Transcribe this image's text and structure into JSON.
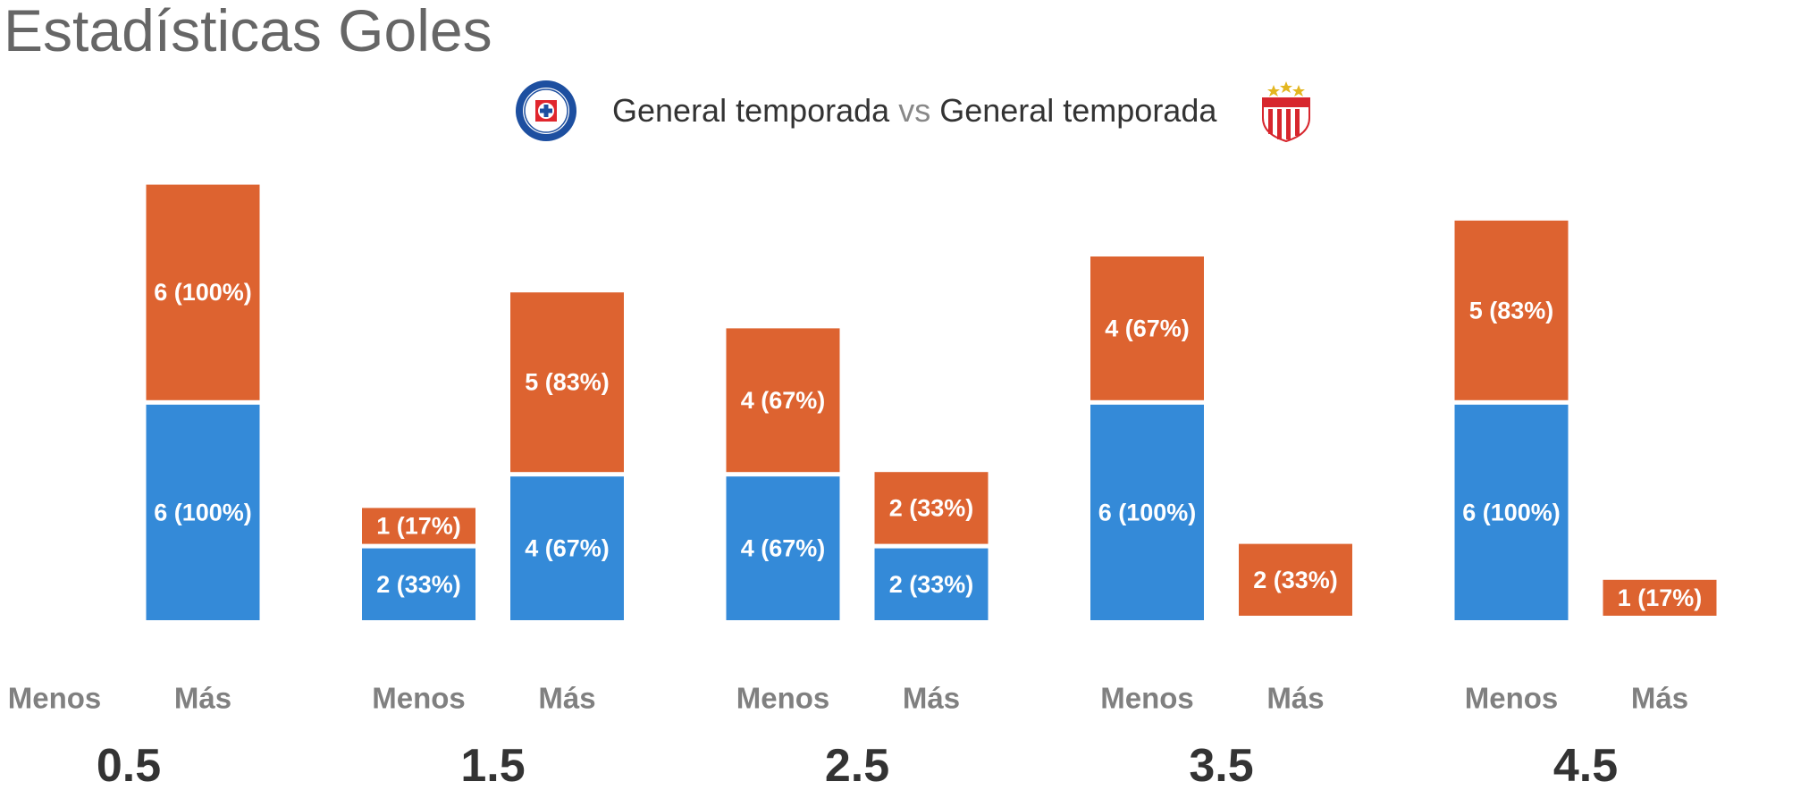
{
  "title": "Estadísticas Goles",
  "subtitle": {
    "left_label": "General temporada",
    "vs_label": "vs",
    "right_label": "General temporada",
    "left_logo": "cruz-azul-crest",
    "right_logo": "necaxa-crest"
  },
  "colors": {
    "blue": "#348ad8",
    "orange": "#dd6330",
    "label": "#808080",
    "group": "#333333"
  },
  "chart_data": {
    "type": "bar",
    "stacked": true,
    "groups": [
      {
        "line": "0.5",
        "bars": [
          {
            "label": "Menos",
            "blue": null,
            "orange": null
          },
          {
            "label": "Más",
            "blue": {
              "value": 6,
              "text": "6 (100%)"
            },
            "orange": {
              "value": 6,
              "text": "6 (100%)"
            }
          }
        ]
      },
      {
        "line": "1.5",
        "bars": [
          {
            "label": "Menos",
            "blue": {
              "value": 2,
              "text": "2 (33%)"
            },
            "orange": {
              "value": 1,
              "text": "1 (17%)"
            }
          },
          {
            "label": "Más",
            "blue": {
              "value": 4,
              "text": "4 (67%)"
            },
            "orange": {
              "value": 5,
              "text": "5 (83%)"
            }
          }
        ]
      },
      {
        "line": "2.5",
        "bars": [
          {
            "label": "Menos",
            "blue": {
              "value": 4,
              "text": "4 (67%)"
            },
            "orange": {
              "value": 4,
              "text": "4 (67%)"
            }
          },
          {
            "label": "Más",
            "blue": {
              "value": 2,
              "text": "2 (33%)"
            },
            "orange": {
              "value": 2,
              "text": "2 (33%)"
            }
          }
        ]
      },
      {
        "line": "3.5",
        "bars": [
          {
            "label": "Menos",
            "blue": {
              "value": 6,
              "text": "6 (100%)"
            },
            "orange": {
              "value": 4,
              "text": "4 (67%)"
            }
          },
          {
            "label": "Más",
            "blue": null,
            "orange": {
              "value": 2,
              "text": "2 (33%)"
            }
          }
        ]
      },
      {
        "line": "4.5",
        "bars": [
          {
            "label": "Menos",
            "blue": {
              "value": 6,
              "text": "6 (100%)"
            },
            "orange": {
              "value": 5,
              "text": "5 (83%)"
            }
          },
          {
            "label": "Más",
            "blue": null,
            "orange": {
              "value": 1,
              "text": "1 (17%)"
            }
          }
        ]
      }
    ]
  }
}
